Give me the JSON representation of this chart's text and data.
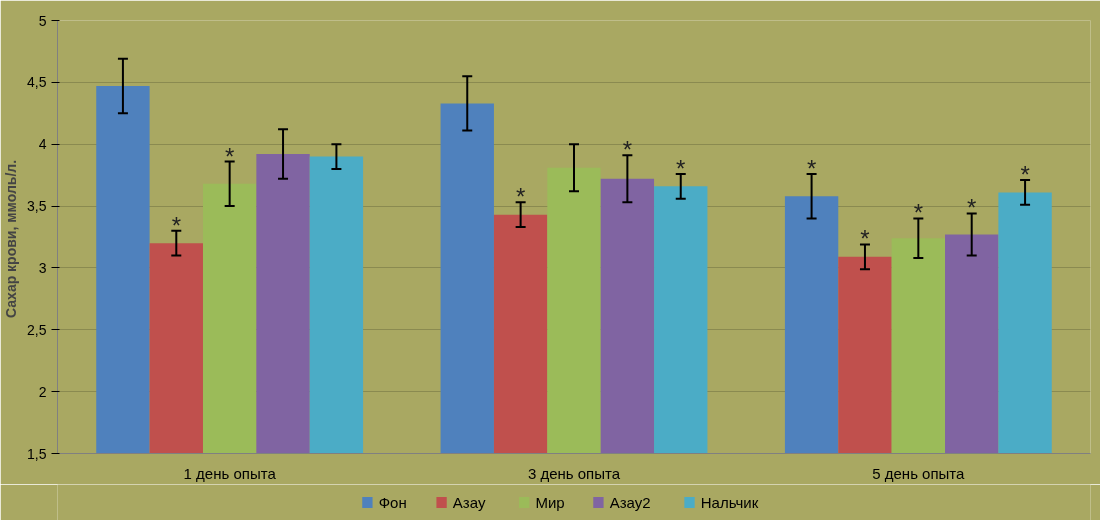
{
  "chart_data": {
    "type": "bar",
    "ylabel": "Сахар крови,  ммоль/л.",
    "categories": [
      "1 день опыта",
      "3 день опыта",
      "5 день опыта"
    ],
    "series": [
      {
        "name": "Фон",
        "color": "#4f81bd",
        "values": [
          4.47,
          4.33,
          3.58
        ],
        "errors": [
          0.22,
          0.22,
          0.18
        ],
        "value_labels": [
          null,
          null,
          "*"
        ]
      },
      {
        "name": "Азау",
        "color": "#c0504d",
        "values": [
          3.2,
          3.43,
          3.09
        ],
        "errors": [
          0.1,
          0.1,
          0.1
        ],
        "value_labels": [
          "*",
          "*",
          "*"
        ]
      },
      {
        "name": "Мир",
        "color": "#9bbb59",
        "values": [
          3.68,
          3.81,
          3.24
        ],
        "errors": [
          0.18,
          0.19,
          0.16
        ],
        "value_labels": [
          "*",
          null,
          "*"
        ]
      },
      {
        "name": "Азау2",
        "color": "#8064a2",
        "values": [
          3.92,
          3.72,
          3.27
        ],
        "errors": [
          0.2,
          0.19,
          0.17
        ],
        "value_labels": [
          null,
          "*",
          "*"
        ]
      },
      {
        "name": "Нальчик",
        "color": "#4bacc6",
        "values": [
          3.9,
          3.66,
          3.61
        ],
        "errors": [
          0.1,
          0.1,
          0.1
        ],
        "value_labels": [
          null,
          "*",
          "*"
        ]
      }
    ],
    "ylim": [
      1.5,
      5
    ],
    "yticks": [
      {
        "value": 1.5,
        "label": "1,5"
      },
      2,
      {
        "value": 2.5,
        "label": "2,5"
      },
      3,
      {
        "value": 3.5,
        "label": "3,5"
      },
      4,
      {
        "value": 4.5,
        "label": "4,5"
      },
      5
    ],
    "grid": "y",
    "legend": "bottom"
  }
}
